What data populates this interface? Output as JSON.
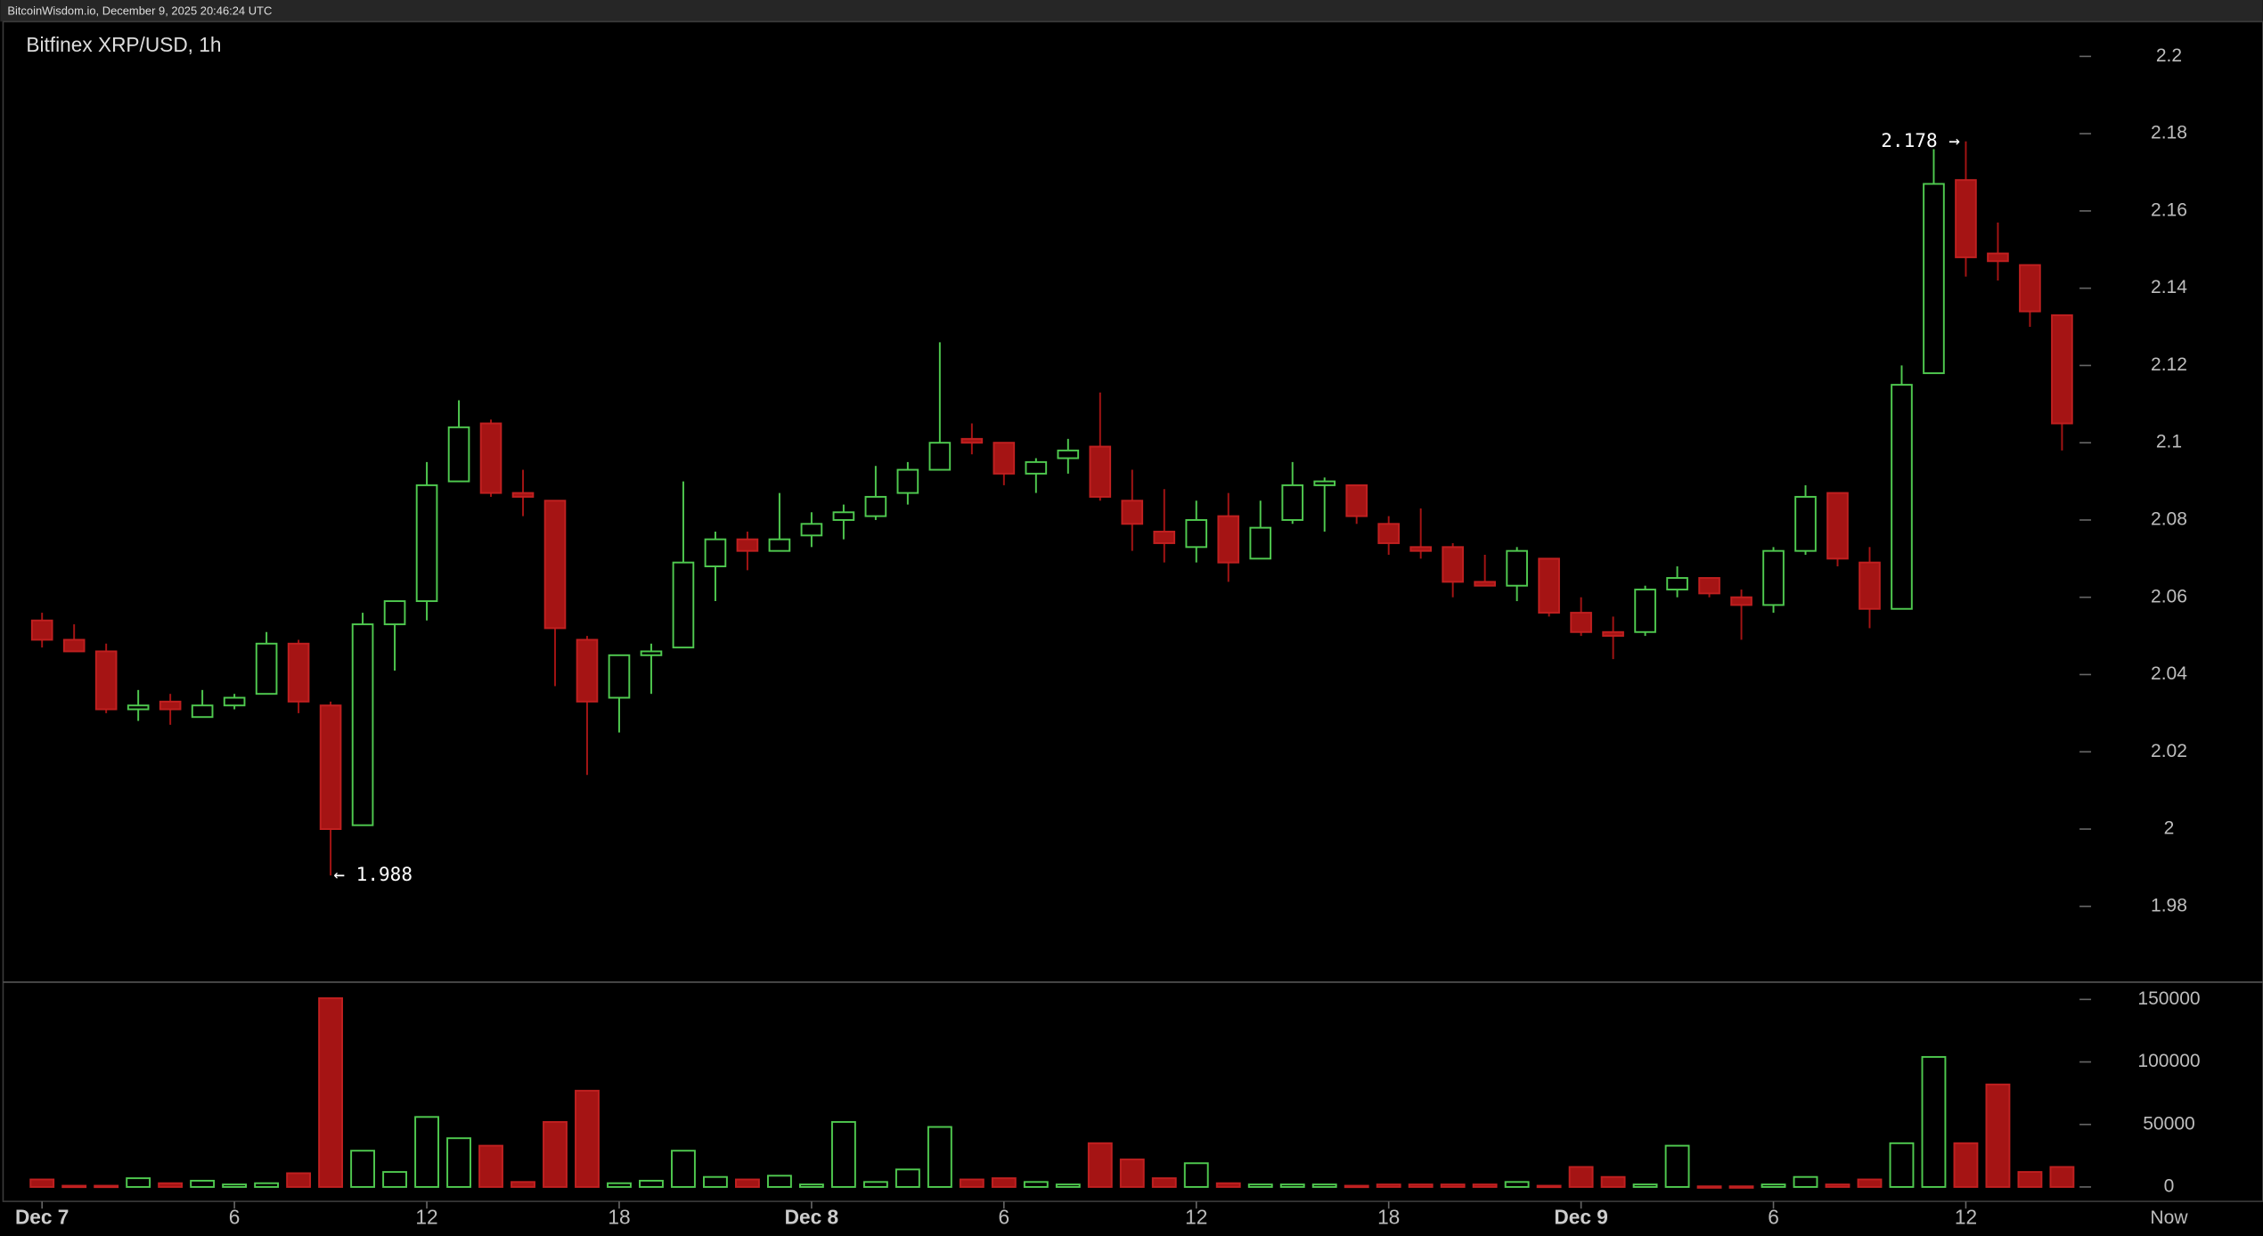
{
  "header": "BitcoinWisdom.io, December 9, 2025 20:46:24 UTC",
  "chart_data": {
    "type": "candlestick",
    "title": "Bitfinex XRP/USD, 1h",
    "categories": [
      "Dec 7",
      null,
      null,
      null,
      null,
      null,
      "6",
      null,
      null,
      null,
      null,
      null,
      "12",
      null,
      null,
      null,
      null,
      null,
      "18",
      null,
      null,
      null,
      null,
      null,
      "Dec 8",
      null,
      null,
      null,
      null,
      null,
      "6",
      null,
      null,
      null,
      null,
      null,
      "12",
      null,
      null,
      null,
      null,
      null,
      "18",
      null,
      null,
      null,
      null,
      null,
      "Dec 9",
      null,
      null,
      null,
      null,
      null,
      "6",
      null,
      null,
      null,
      null,
      null,
      "12",
      null,
      null,
      null
    ],
    "x_end_label": "Now",
    "open": [
      2.054,
      2.049,
      2.046,
      2.031,
      2.033,
      2.029,
      2.032,
      2.035,
      2.048,
      2.032,
      2.001,
      2.053,
      2.059,
      2.09,
      2.105,
      2.087,
      2.085,
      2.049,
      2.034,
      2.045,
      2.047,
      2.068,
      2.075,
      2.072,
      2.076,
      2.08,
      2.081,
      2.087,
      2.093,
      2.101,
      2.1,
      2.092,
      2.096,
      2.099,
      2.085,
      2.077,
      2.073,
      2.081,
      2.07,
      2.08,
      2.089,
      2.089,
      2.079,
      2.073,
      2.073,
      2.064,
      2.063,
      2.07,
      2.056,
      2.051,
      2.051,
      2.062,
      2.065,
      2.06,
      2.058,
      2.072,
      2.087,
      2.069,
      2.057,
      2.118,
      2.168,
      2.149,
      2.146,
      2.133
    ],
    "high": [
      2.056,
      2.053,
      2.048,
      2.036,
      2.035,
      2.036,
      2.035,
      2.051,
      2.049,
      2.033,
      2.056,
      2.059,
      2.095,
      2.111,
      2.106,
      2.093,
      2.085,
      2.05,
      2.045,
      2.048,
      2.09,
      2.077,
      2.077,
      2.087,
      2.082,
      2.084,
      2.094,
      2.095,
      2.126,
      2.105,
      2.1,
      2.096,
      2.101,
      2.113,
      2.093,
      2.088,
      2.085,
      2.087,
      2.085,
      2.095,
      2.091,
      2.089,
      2.081,
      2.083,
      2.074,
      2.071,
      2.073,
      2.07,
      2.06,
      2.055,
      2.063,
      2.068,
      2.065,
      2.062,
      2.073,
      2.089,
      2.087,
      2.073,
      2.12,
      2.176,
      2.178,
      2.157,
      2.146,
      2.133
    ],
    "low": [
      2.047,
      2.046,
      2.03,
      2.028,
      2.027,
      2.029,
      2.031,
      2.035,
      2.03,
      1.988,
      2.001,
      2.041,
      2.054,
      2.09,
      2.086,
      2.081,
      2.037,
      2.014,
      2.025,
      2.035,
      2.047,
      2.059,
      2.067,
      2.072,
      2.073,
      2.075,
      2.08,
      2.084,
      2.093,
      2.097,
      2.089,
      2.087,
      2.092,
      2.085,
      2.072,
      2.069,
      2.069,
      2.064,
      2.07,
      2.079,
      2.077,
      2.079,
      2.071,
      2.07,
      2.06,
      2.063,
      2.059,
      2.055,
      2.05,
      2.044,
      2.05,
      2.06,
      2.06,
      2.049,
      2.056,
      2.071,
      2.068,
      2.052,
      2.057,
      2.118,
      2.143,
      2.142,
      2.13,
      2.098
    ],
    "close": [
      2.049,
      2.046,
      2.031,
      2.032,
      2.031,
      2.032,
      2.034,
      2.048,
      2.033,
      2.0,
      2.053,
      2.059,
      2.089,
      2.104,
      2.087,
      2.086,
      2.052,
      2.033,
      2.045,
      2.046,
      2.069,
      2.075,
      2.072,
      2.075,
      2.079,
      2.082,
      2.086,
      2.093,
      2.1,
      2.1,
      2.092,
      2.095,
      2.098,
      2.086,
      2.079,
      2.074,
      2.08,
      2.069,
      2.078,
      2.089,
      2.09,
      2.081,
      2.074,
      2.072,
      2.064,
      2.063,
      2.072,
      2.056,
      2.051,
      2.05,
      2.062,
      2.065,
      2.061,
      2.058,
      2.072,
      2.086,
      2.07,
      2.057,
      2.115,
      2.167,
      2.148,
      2.147,
      2.134,
      2.105
    ],
    "volume": [
      6000,
      1000,
      1000,
      7000,
      3000,
      5000,
      2000,
      3000,
      11000,
      151000,
      29000,
      12000,
      56000,
      39000,
      33000,
      4000,
      52000,
      77000,
      3000,
      5000,
      29000,
      8000,
      6000,
      9000,
      2000,
      52000,
      4000,
      14000,
      48000,
      6000,
      7000,
      4000,
      2000,
      35000,
      22000,
      7000,
      19000,
      3000,
      2000,
      2000,
      2000,
      1000,
      2000,
      2000,
      2000,
      2000,
      4000,
      1000,
      16000,
      8000,
      2000,
      33000,
      500,
      500,
      2000,
      8000,
      2000,
      6000,
      35000,
      104000,
      35000,
      82000,
      12000,
      16000
    ],
    "up_color": "#4fc94f",
    "down_color": "#a51414",
    "ylim": [
      1.96,
      2.209
    ],
    "yticks": [
      1.98,
      2,
      2.02,
      2.04,
      2.06,
      2.08,
      2.1,
      2.12,
      2.14,
      2.16,
      2.18,
      2.2
    ],
    "volume_lim": [
      0,
      161500
    ],
    "volume_ticks": [
      0,
      50000,
      100000,
      150000
    ],
    "high_label": "2.178 →",
    "low_label": "← 1.988",
    "grid": false
  }
}
